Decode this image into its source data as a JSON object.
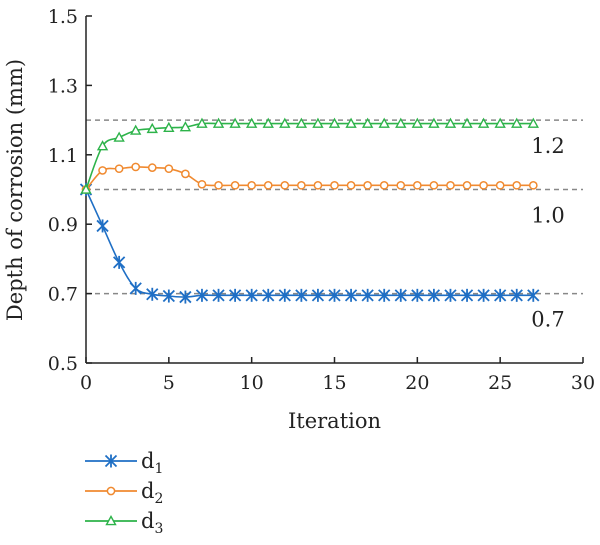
{
  "chart_data": {
    "type": "line",
    "xlabel": "Iteration",
    "ylabel": "Depth of corrosion (mm)",
    "xlim": [
      0,
      30
    ],
    "ylim": [
      0.5,
      1.5
    ],
    "xticks": [
      0,
      5,
      10,
      15,
      20,
      25,
      30
    ],
    "xtick_labels": [
      "0",
      "5",
      "10",
      "15",
      "20",
      "25",
      "30"
    ],
    "yticks": [
      0.5,
      0.7,
      0.9,
      1.1,
      1.3,
      1.5
    ],
    "ytick_labels": [
      "0.5",
      "0.7",
      "0.9",
      "1.1",
      "1.3",
      "1.5"
    ],
    "grid": false,
    "legend_position": "bottom-left",
    "x": [
      0,
      1,
      2,
      3,
      4,
      5,
      6,
      7,
      8,
      9,
      10,
      11,
      12,
      13,
      14,
      15,
      16,
      17,
      18,
      19,
      20,
      21,
      22,
      23,
      24,
      25,
      26,
      27
    ],
    "series": [
      {
        "name": "d",
        "subscript": "1",
        "color": "#1f6fc5",
        "marker": "asterisk",
        "values": [
          1.0,
          0.895,
          0.79,
          0.715,
          0.698,
          0.693,
          0.69,
          0.695,
          0.695,
          0.695,
          0.695,
          0.695,
          0.695,
          0.695,
          0.695,
          0.695,
          0.695,
          0.695,
          0.695,
          0.695,
          0.695,
          0.695,
          0.695,
          0.695,
          0.695,
          0.695,
          0.695,
          0.695
        ]
      },
      {
        "name": "d",
        "subscript": "2",
        "color": "#f08a30",
        "marker": "circle",
        "values": [
          1.0,
          1.055,
          1.06,
          1.065,
          1.063,
          1.06,
          1.045,
          1.015,
          1.012,
          1.012,
          1.012,
          1.012,
          1.012,
          1.012,
          1.012,
          1.012,
          1.012,
          1.012,
          1.012,
          1.012,
          1.012,
          1.012,
          1.012,
          1.012,
          1.012,
          1.012,
          1.012,
          1.012
        ]
      },
      {
        "name": "d",
        "subscript": "3",
        "color": "#2db34a",
        "marker": "triangle",
        "values": [
          1.0,
          1.125,
          1.15,
          1.17,
          1.175,
          1.178,
          1.18,
          1.19,
          1.19,
          1.19,
          1.19,
          1.19,
          1.19,
          1.19,
          1.19,
          1.19,
          1.19,
          1.19,
          1.19,
          1.19,
          1.19,
          1.19,
          1.19,
          1.19,
          1.19,
          1.19,
          1.19,
          1.19
        ]
      }
    ],
    "reference_lines": [
      {
        "y": 1.2,
        "label": "1.2",
        "color": "#888888"
      },
      {
        "y": 1.0,
        "label": "1.0",
        "color": "#888888"
      },
      {
        "y": 0.7,
        "label": "0.7",
        "color": "#888888"
      }
    ]
  }
}
